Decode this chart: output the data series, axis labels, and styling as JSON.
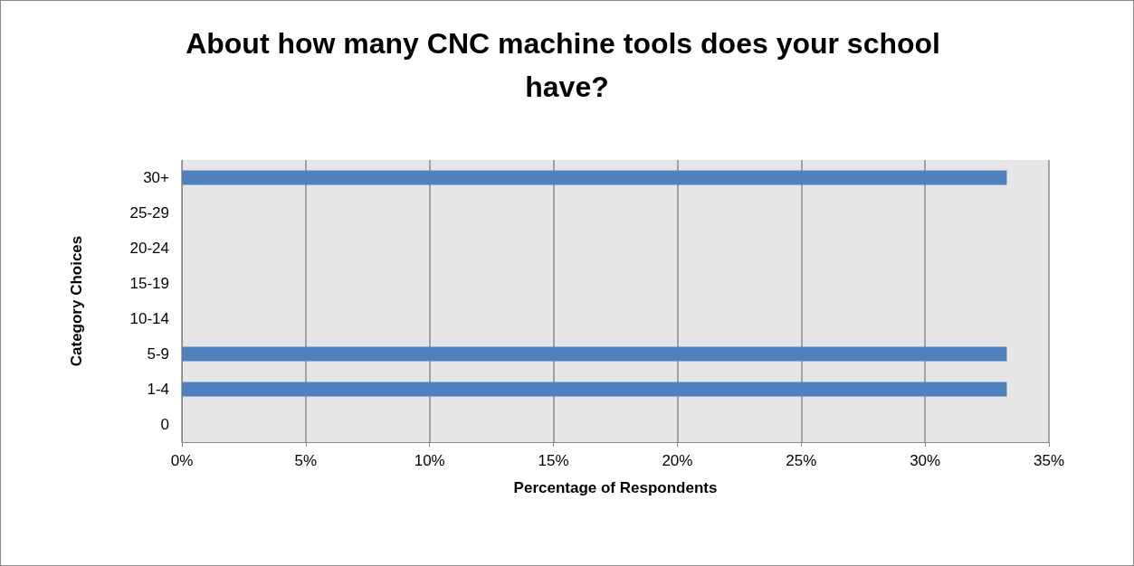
{
  "chart_data": {
    "type": "bar",
    "orientation": "horizontal",
    "title": "About how many CNC machine tools does your school have?",
    "xlabel": "Percentage of Respondents",
    "ylabel": "Category Choices",
    "categories": [
      "30+",
      "25-29",
      "20-24",
      "15-19",
      "10-14",
      "5-9",
      "1-4",
      "0"
    ],
    "values": [
      33.3,
      0,
      0,
      0,
      0,
      33.3,
      33.3,
      0
    ],
    "color": "#4f81bd",
    "xlim": [
      0,
      35
    ],
    "xticks": [
      {
        "value": 0,
        "label": "0%"
      },
      {
        "value": 5,
        "label": "5%"
      },
      {
        "value": 10,
        "label": "10%"
      },
      {
        "value": 15,
        "label": "15%"
      },
      {
        "value": 20,
        "label": "20%"
      },
      {
        "value": 25,
        "label": "25%"
      },
      {
        "value": 30,
        "label": "30%"
      },
      {
        "value": 35,
        "label": "35%"
      }
    ],
    "grid": "x"
  }
}
